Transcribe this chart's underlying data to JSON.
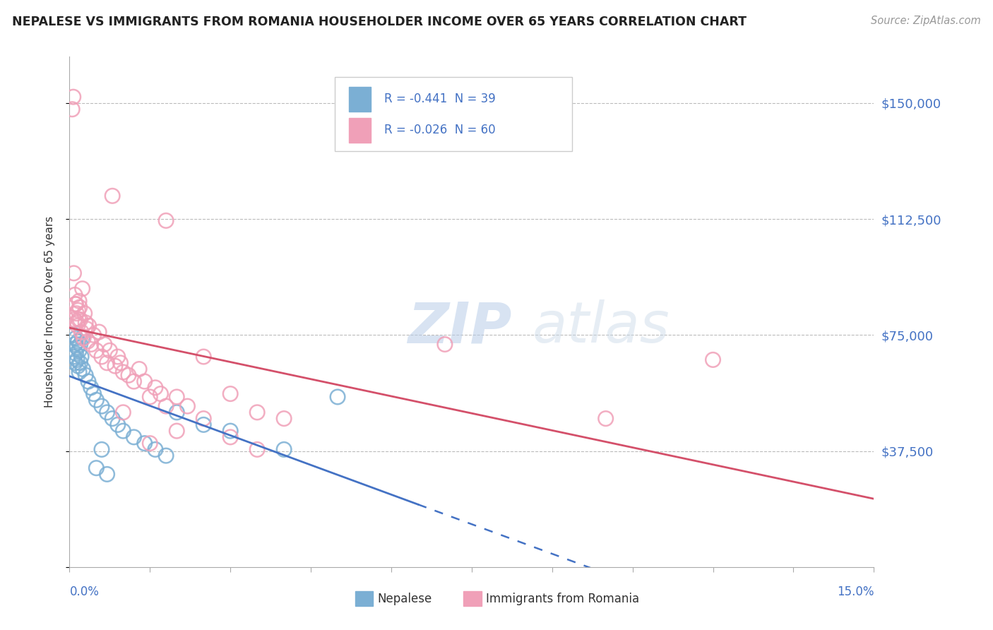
{
  "title": "NEPALESE VS IMMIGRANTS FROM ROMANIA HOUSEHOLDER INCOME OVER 65 YEARS CORRELATION CHART",
  "source": "Source: ZipAtlas.com",
  "ylabel": "Householder Income Over 65 years",
  "xmin": 0.0,
  "xmax": 0.15,
  "ymin": 0,
  "ymax": 165000,
  "yticks": [
    0,
    37500,
    75000,
    112500,
    150000
  ],
  "ytick_labels": [
    "",
    "$37,500",
    "$75,000",
    "$112,500",
    "$150,000"
  ],
  "legend_r1": "R = -0.441  N = 39",
  "legend_r2": "R = -0.026  N = 60",
  "watermark_zip": "ZIP",
  "watermark_atlas": "atlas",
  "nepalese_color": "#7bafd4",
  "romania_color": "#f0a0b8",
  "nepalese_line_color": "#4472c4",
  "romania_line_color": "#d4506a",
  "nepalese_scatter": [
    [
      0.0008,
      75000
    ],
    [
      0.001,
      72000
    ],
    [
      0.0012,
      74000
    ],
    [
      0.0014,
      71000
    ],
    [
      0.0016,
      73000
    ],
    [
      0.0018,
      70000
    ],
    [
      0.002,
      72000
    ],
    [
      0.0022,
      68000
    ],
    [
      0.0024,
      74000
    ],
    [
      0.0008,
      68000
    ],
    [
      0.001,
      66000
    ],
    [
      0.0012,
      69000
    ],
    [
      0.0014,
      67000
    ],
    [
      0.0016,
      65000
    ],
    [
      0.0018,
      63000
    ],
    [
      0.002,
      66000
    ],
    [
      0.0025,
      64000
    ],
    [
      0.003,
      62000
    ],
    [
      0.0035,
      60000
    ],
    [
      0.004,
      58000
    ],
    [
      0.0045,
      56000
    ],
    [
      0.005,
      54000
    ],
    [
      0.006,
      52000
    ],
    [
      0.007,
      50000
    ],
    [
      0.008,
      48000
    ],
    [
      0.009,
      46000
    ],
    [
      0.01,
      44000
    ],
    [
      0.012,
      42000
    ],
    [
      0.014,
      40000
    ],
    [
      0.016,
      38000
    ],
    [
      0.018,
      36000
    ],
    [
      0.02,
      50000
    ],
    [
      0.025,
      46000
    ],
    [
      0.03,
      44000
    ],
    [
      0.005,
      32000
    ],
    [
      0.04,
      38000
    ],
    [
      0.05,
      55000
    ],
    [
      0.006,
      38000
    ],
    [
      0.007,
      30000
    ]
  ],
  "romania_scatter": [
    [
      0.0005,
      148000
    ],
    [
      0.0007,
      152000
    ],
    [
      0.0009,
      80000
    ],
    [
      0.0011,
      85000
    ],
    [
      0.0013,
      82000
    ],
    [
      0.0015,
      78000
    ],
    [
      0.0017,
      80000
    ],
    [
      0.0019,
      84000
    ],
    [
      0.0008,
      95000
    ],
    [
      0.001,
      88000
    ],
    [
      0.0012,
      85000
    ],
    [
      0.0014,
      79000
    ],
    [
      0.0016,
      83000
    ],
    [
      0.0018,
      86000
    ],
    [
      0.002,
      80000
    ],
    [
      0.0022,
      76000
    ],
    [
      0.0024,
      90000
    ],
    [
      0.0026,
      74000
    ],
    [
      0.0028,
      82000
    ],
    [
      0.003,
      79000
    ],
    [
      0.0032,
      77000
    ],
    [
      0.0034,
      73000
    ],
    [
      0.0036,
      78000
    ],
    [
      0.004,
      72000
    ],
    [
      0.0045,
      75000
    ],
    [
      0.005,
      70000
    ],
    [
      0.0055,
      76000
    ],
    [
      0.006,
      68000
    ],
    [
      0.0065,
      72000
    ],
    [
      0.007,
      66000
    ],
    [
      0.0075,
      70000
    ],
    [
      0.008,
      120000
    ],
    [
      0.0085,
      65000
    ],
    [
      0.009,
      68000
    ],
    [
      0.0095,
      66000
    ],
    [
      0.01,
      63000
    ],
    [
      0.011,
      62000
    ],
    [
      0.012,
      60000
    ],
    [
      0.013,
      64000
    ],
    [
      0.018,
      112000
    ],
    [
      0.014,
      60000
    ],
    [
      0.015,
      55000
    ],
    [
      0.016,
      58000
    ],
    [
      0.017,
      56000
    ],
    [
      0.02,
      55000
    ],
    [
      0.022,
      52000
    ],
    [
      0.025,
      68000
    ],
    [
      0.018,
      52000
    ],
    [
      0.03,
      56000
    ],
    [
      0.035,
      50000
    ],
    [
      0.04,
      48000
    ],
    [
      0.025,
      48000
    ],
    [
      0.02,
      44000
    ],
    [
      0.015,
      40000
    ],
    [
      0.03,
      42000
    ],
    [
      0.035,
      38000
    ],
    [
      0.01,
      50000
    ],
    [
      0.12,
      67000
    ],
    [
      0.1,
      48000
    ],
    [
      0.07,
      72000
    ]
  ]
}
